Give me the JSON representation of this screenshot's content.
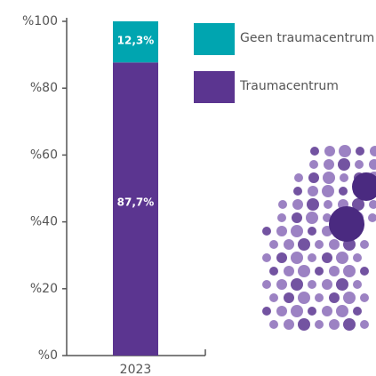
{
  "chart_data": {
    "type": "stacked-bar",
    "categories": [
      "2023"
    ],
    "series": [
      {
        "name": "Geen traumacentrum",
        "color": "#00a5b0",
        "values": [
          12.3
        ],
        "value_labels": [
          "12,3%"
        ]
      },
      {
        "name": "Traumacentrum",
        "color": "#5b3590",
        "values": [
          87.7
        ],
        "value_labels": [
          "87,7%"
        ]
      }
    ],
    "ylim": [
      0,
      100
    ],
    "yticks": [
      {
        "value": 0,
        "label": "%0"
      },
      {
        "value": 20,
        "label": "%20"
      },
      {
        "value": 40,
        "label": "%40"
      },
      {
        "value": 60,
        "label": "%60"
      },
      {
        "value": 80,
        "label": "%80"
      },
      {
        "value": 100,
        "label": "%100"
      }
    ]
  }
}
